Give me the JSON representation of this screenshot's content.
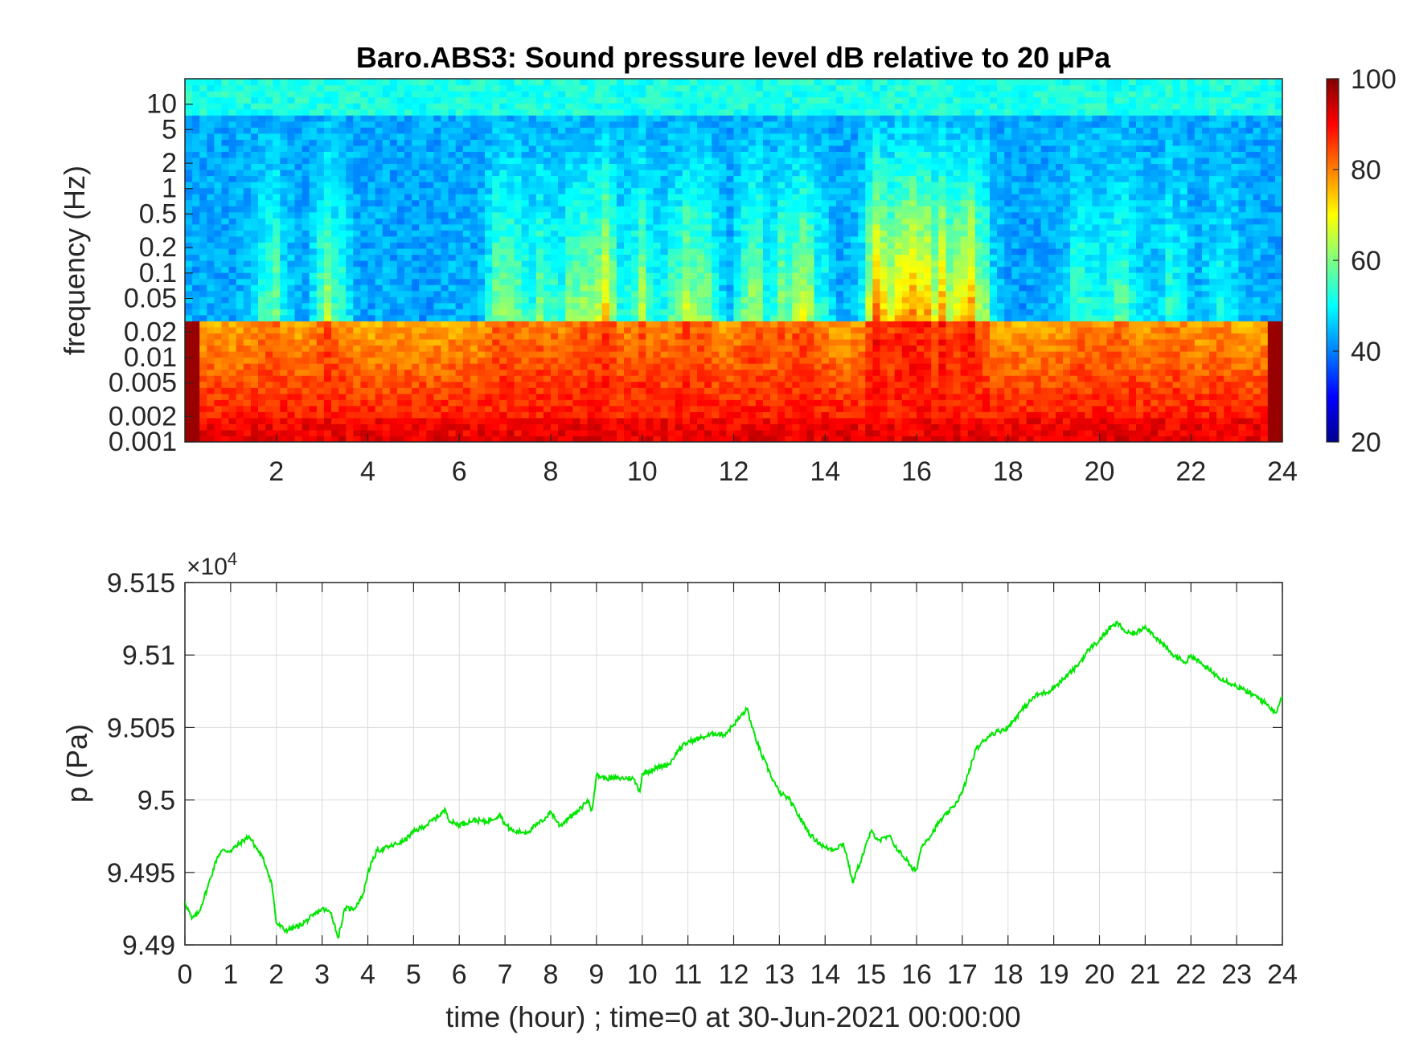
{
  "chart_data": [
    {
      "type": "heatmap",
      "title": "Baro.ABS3: Sound pressure level dB relative to 20 μPa",
      "ylabel": "frequency (Hz)",
      "xlabel": "",
      "x_ticks": [
        "2",
        "4",
        "6",
        "8",
        "10",
        "12",
        "14",
        "16",
        "18",
        "20",
        "22",
        "24"
      ],
      "x_tick_values": [
        2,
        4,
        6,
        8,
        10,
        12,
        14,
        16,
        18,
        20,
        22,
        24
      ],
      "xlim": [
        0,
        24
      ],
      "y_scale": "log",
      "ylim": [
        0.001,
        20
      ],
      "y_ticks": [
        "10",
        "5",
        "2",
        "1",
        "0.5",
        "0.2",
        "0.1",
        "0.05",
        "0.02",
        "0.01",
        "0.005",
        "0.002",
        "0.001"
      ],
      "y_tick_values": [
        10,
        5,
        2,
        1,
        0.5,
        0.2,
        0.1,
        0.05,
        0.02,
        0.01,
        0.005,
        0.002,
        0.001
      ],
      "colorbar": {
        "colormap": "jet",
        "range": [
          20,
          100
        ],
        "ticks": [
          "100",
          "80",
          "60",
          "40",
          "20"
        ],
        "tick_values": [
          100,
          80,
          60,
          40,
          20
        ]
      },
      "intensity_notes": {
        "high_activity_hours": [
          [
            7,
            12
          ],
          [
            14.8,
            17.5
          ]
        ],
        "quiet_hours": [
          [
            3.5,
            6.5
          ],
          [
            17.5,
            19.2
          ],
          [
            21,
            24
          ]
        ]
      }
    },
    {
      "type": "line",
      "xlabel": "time (hour) ; time=0 at 30-Jun-2021 00:00:00",
      "ylabel": "p (Pa)",
      "xlim": [
        0,
        24
      ],
      "ylim": [
        9.49,
        9.515
      ],
      "y_multiplier": "×10",
      "y_multiplier_exponent": "4",
      "x_ticks": [
        "0",
        "1",
        "2",
        "3",
        "4",
        "5",
        "6",
        "7",
        "8",
        "9",
        "10",
        "11",
        "12",
        "13",
        "14",
        "15",
        "16",
        "17",
        "18",
        "19",
        "20",
        "21",
        "22",
        "23",
        "24"
      ],
      "y_ticks": [
        "9.515",
        "9.51",
        "9.505",
        "9.5",
        "9.495",
        "9.49"
      ],
      "y_tick_values": [
        9.515,
        9.51,
        9.505,
        9.5,
        9.495,
        9.49
      ],
      "grid": true,
      "line_color": "#00e600",
      "series": [
        {
          "x": [
            0,
            0.15,
            0.3,
            0.5,
            0.7,
            0.8,
            1.0,
            1.2,
            1.4,
            1.5,
            1.7,
            1.8,
            1.9,
            2.0,
            2.2,
            2.5,
            2.8,
            3.0,
            3.2,
            3.35,
            3.5,
            3.7,
            3.9,
            4.0,
            4.2,
            4.5,
            4.8,
            5.0,
            5.3,
            5.5,
            5.7,
            5.8,
            6.0,
            6.3,
            6.6,
            6.9,
            7.0,
            7.2,
            7.5,
            7.7,
            7.9,
            8.0,
            8.2,
            8.4,
            8.6,
            8.8,
            8.9,
            9.0,
            9.2,
            9.5,
            9.8,
            9.95,
            10.0,
            10.3,
            10.6,
            10.8,
            11.0,
            11.3,
            11.6,
            11.8,
            12.0,
            12.3,
            12.4,
            12.6,
            12.8,
            13.0,
            13.2,
            13.5,
            13.7,
            14.0,
            14.2,
            14.4,
            14.5,
            14.6,
            14.8,
            15.0,
            15.2,
            15.4,
            15.6,
            15.8,
            15.9,
            16.0,
            16.1,
            16.2,
            16.3,
            16.5,
            16.8,
            17.0,
            17.3,
            17.6,
            18.0,
            18.3,
            18.6,
            18.9,
            19.2,
            19.5,
            19.8,
            20.0,
            20.2,
            20.4,
            20.6,
            20.8,
            21.0,
            21.3,
            21.6,
            21.9,
            22.0,
            22.3,
            22.6,
            22.9,
            23.2,
            23.5,
            23.7,
            23.85,
            24.0
          ],
          "y": [
            9.493,
            9.4918,
            9.4922,
            9.494,
            9.496,
            9.4965,
            9.4965,
            9.497,
            9.4975,
            9.497,
            9.496,
            9.4952,
            9.4942,
            9.4915,
            9.491,
            9.4913,
            9.492,
            9.4925,
            9.4922,
            9.4905,
            9.4925,
            9.4925,
            9.4935,
            9.495,
            9.4965,
            9.4968,
            9.4972,
            9.4978,
            9.4983,
            9.4988,
            9.4993,
            9.4985,
            9.4983,
            9.4986,
            9.4985,
            9.499,
            9.4983,
            9.4978,
            9.4978,
            9.4983,
            9.4988,
            9.4992,
            9.4982,
            9.4988,
            9.4992,
            9.5,
            9.4993,
            9.5017,
            9.5015,
            9.5015,
            9.5015,
            9.5006,
            9.5018,
            9.5022,
            9.5025,
            9.5035,
            9.504,
            9.5043,
            9.5046,
            9.5045,
            9.5052,
            9.5063,
            9.505,
            9.5032,
            9.5018,
            9.5005,
            9.5001,
            9.4985,
            9.4975,
            9.4967,
            9.4966,
            9.497,
            9.4958,
            9.4943,
            9.496,
            9.4978,
            9.4972,
            9.4975,
            9.4965,
            9.4958,
            9.4952,
            9.4952,
            9.4967,
            9.4972,
            9.4975,
            9.4985,
            9.4995,
            9.5005,
            9.5035,
            9.5045,
            9.505,
            9.5062,
            9.5072,
            9.5075,
            9.5083,
            9.5092,
            9.5105,
            9.511,
            9.5118,
            9.5122,
            9.5115,
            9.5115,
            9.512,
            9.511,
            9.51,
            9.5095,
            9.51,
            9.5092,
            9.5085,
            9.508,
            9.5075,
            9.507,
            9.5065,
            9.506,
            9.5072
          ]
        }
      ]
    }
  ]
}
